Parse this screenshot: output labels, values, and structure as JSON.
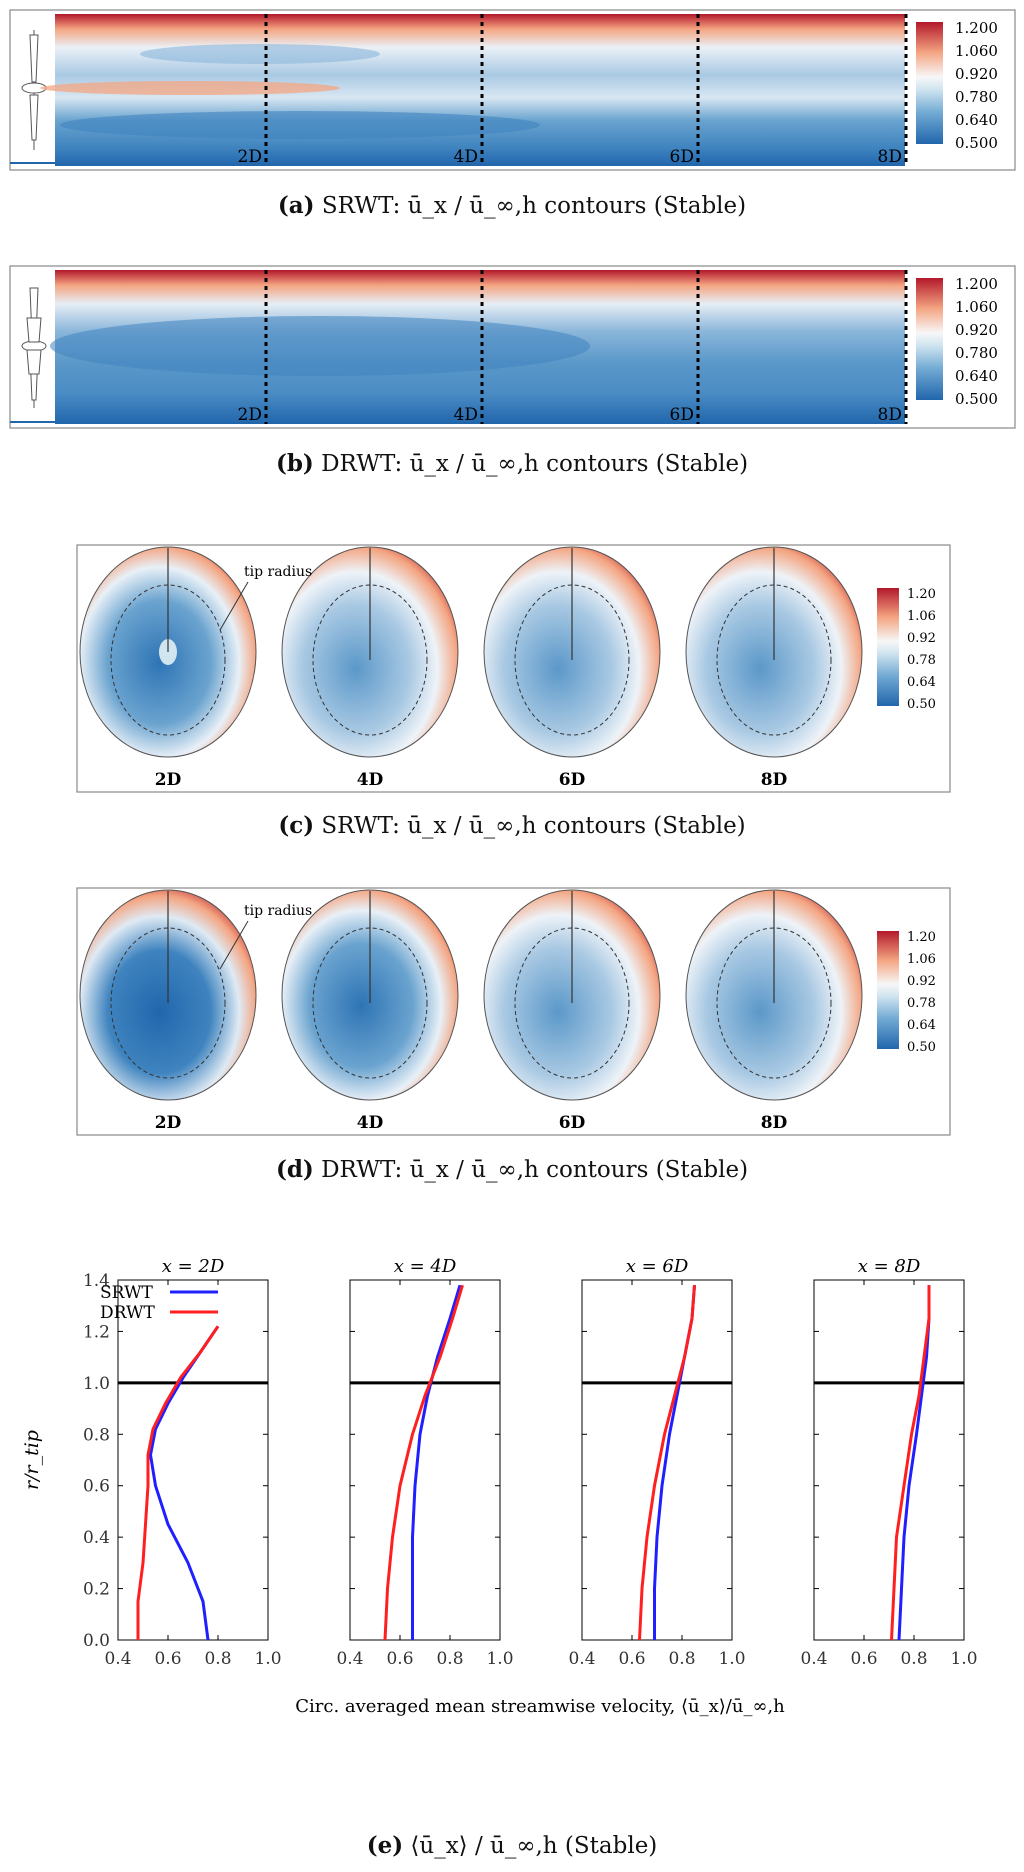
{
  "colors": {
    "low": "#2166ac",
    "mid": "#f7f7f7",
    "high": "#b2182b",
    "srwt_line": "#1f1fff",
    "drwt_line": "#ff1f1f"
  },
  "panel_a": {
    "caption_label": "(a)",
    "caption_text": "SRWT: ū_x / ū_∞,h contours (Stable)",
    "distance_labels": [
      "2D",
      "4D",
      "6D",
      "8D"
    ],
    "colorbar_ticks": [
      "1.200",
      "1.060",
      "0.920",
      "0.780",
      "0.640",
      "0.500"
    ]
  },
  "panel_b": {
    "caption_label": "(b)",
    "caption_text": "DRWT: ū_x / ū_∞,h contours (Stable)",
    "distance_labels": [
      "2D",
      "4D",
      "6D",
      "8D"
    ],
    "colorbar_ticks": [
      "1.200",
      "1.060",
      "0.920",
      "0.780",
      "0.640",
      "0.500"
    ]
  },
  "panel_c": {
    "caption_label": "(c)",
    "caption_text": "SRWT: ū_x / ū_∞,h contours (Stable)",
    "annotation": "tip radius",
    "slice_labels": [
      "2D",
      "4D",
      "6D",
      "8D"
    ],
    "colorbar_ticks": [
      "1.20",
      "1.06",
      "0.92",
      "0.78",
      "0.64",
      "0.50"
    ]
  },
  "panel_d": {
    "caption_label": "(d)",
    "caption_text": "DRWT: ū_x / ū_∞,h contours (Stable)",
    "annotation": "tip radius",
    "slice_labels": [
      "2D",
      "4D",
      "6D",
      "8D"
    ],
    "colorbar_ticks": [
      "1.20",
      "1.06",
      "0.92",
      "0.78",
      "0.64",
      "0.50"
    ]
  },
  "panel_e": {
    "caption_label": "(e)",
    "caption_text": "⟨ū_x⟩ / ū_∞,h (Stable)"
  },
  "chart_data": {
    "type": "line",
    "title": "",
    "xlabel": "Circ. averaged mean streamwise velocity, ⟨ū_x⟩/ū_∞,h",
    "ylabel": "r/r_tip",
    "xlim": [
      0.4,
      1.0
    ],
    "ylim": [
      0.0,
      1.4
    ],
    "xticks": [
      "0.4",
      "0.6",
      "0.8",
      "1.0"
    ],
    "yticks": [
      "0.0",
      "0.2",
      "0.4",
      "0.6",
      "0.8",
      "1.0",
      "1.2",
      "1.4"
    ],
    "legend": [
      "SRWT",
      "DRWT"
    ],
    "legend_position": "top-left",
    "reference_line_y": 1.0,
    "subplots": [
      {
        "title": "x = 2D",
        "series": [
          {
            "name": "SRWT",
            "x": [
              0.76,
              0.74,
              0.68,
              0.6,
              0.55,
              0.53,
              0.55,
              0.6,
              0.66,
              0.73,
              0.8
            ],
            "y": [
              0.0,
              0.15,
              0.3,
              0.45,
              0.6,
              0.72,
              0.82,
              0.92,
              1.02,
              1.12,
              1.22
            ]
          },
          {
            "name": "DRWT",
            "x": [
              0.48,
              0.48,
              0.5,
              0.51,
              0.52,
              0.52,
              0.54,
              0.59,
              0.65,
              0.73,
              0.8
            ],
            "y": [
              0.0,
              0.15,
              0.3,
              0.45,
              0.6,
              0.72,
              0.82,
              0.92,
              1.02,
              1.12,
              1.22
            ]
          }
        ]
      },
      {
        "title": "x = 4D",
        "series": [
          {
            "name": "SRWT",
            "x": [
              0.65,
              0.65,
              0.65,
              0.66,
              0.68,
              0.71,
              0.75,
              0.8,
              0.84
            ],
            "y": [
              0.0,
              0.2,
              0.4,
              0.6,
              0.8,
              0.95,
              1.1,
              1.25,
              1.38
            ]
          },
          {
            "name": "DRWT",
            "x": [
              0.54,
              0.55,
              0.57,
              0.6,
              0.65,
              0.7,
              0.76,
              0.81,
              0.85
            ],
            "y": [
              0.0,
              0.2,
              0.4,
              0.6,
              0.8,
              0.95,
              1.1,
              1.25,
              1.38
            ]
          }
        ]
      },
      {
        "title": "x = 6D",
        "series": [
          {
            "name": "SRWT",
            "x": [
              0.69,
              0.69,
              0.7,
              0.72,
              0.75,
              0.78,
              0.81,
              0.84,
              0.85
            ],
            "y": [
              0.0,
              0.2,
              0.4,
              0.6,
              0.8,
              0.95,
              1.1,
              1.25,
              1.38
            ]
          },
          {
            "name": "DRWT",
            "x": [
              0.63,
              0.64,
              0.66,
              0.69,
              0.73,
              0.77,
              0.81,
              0.84,
              0.85
            ],
            "y": [
              0.0,
              0.2,
              0.4,
              0.6,
              0.8,
              0.95,
              1.1,
              1.25,
              1.38
            ]
          }
        ]
      },
      {
        "title": "x = 8D",
        "series": [
          {
            "name": "SRWT",
            "x": [
              0.74,
              0.75,
              0.76,
              0.78,
              0.81,
              0.83,
              0.85,
              0.86,
              0.86
            ],
            "y": [
              0.0,
              0.2,
              0.4,
              0.6,
              0.8,
              0.95,
              1.1,
              1.25,
              1.38
            ]
          },
          {
            "name": "DRWT",
            "x": [
              0.71,
              0.72,
              0.73,
              0.76,
              0.79,
              0.82,
              0.84,
              0.86,
              0.86
            ],
            "y": [
              0.0,
              0.2,
              0.4,
              0.6,
              0.8,
              0.95,
              1.1,
              1.25,
              1.38
            ]
          }
        ]
      }
    ]
  }
}
